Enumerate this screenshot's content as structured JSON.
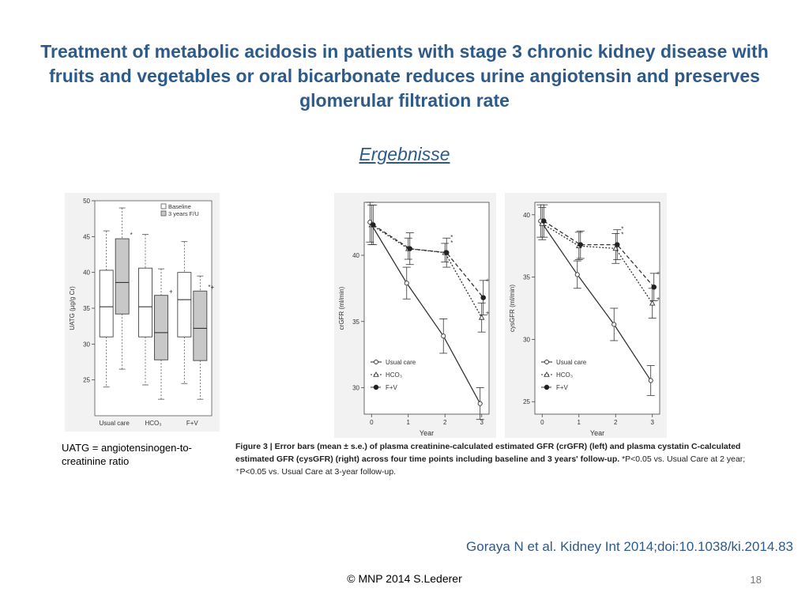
{
  "slide": {
    "title": "Treatment of metabolic acidosis in patients with stage 3 chronic kidney disease with fruits and vegetables or oral bicarbonate reduces urine angiotensin and preserves glomerular filtration rate",
    "subtitle": "Ergebnisse",
    "uatg_note": "UATG = angiotensinogen-to-creatinine ratio",
    "caption_bold": "Figure 3 | Error bars (mean ± s.e.) of plasma creatinine-calculated estimated GFR (crGFR) (left) and plasma cystatin C-calculated estimated GFR (cysGFR) (right) across four time points including baseline and 3 years' follow-up.",
    "caption_rest": " *P<0.05 vs. Usual Care at 2 year; ⁺P<0.05 vs. Usual Care at 3-year follow-up.",
    "citation": "Goraya N et al. Kidney Int 2014;doi:10.1038/ki.2014.83",
    "footer": "© MNP 2014 S.Lederer",
    "page_number": "18"
  },
  "chart_data": [
    {
      "type": "boxplot",
      "ylabel": "UATG (µg/g Cr)",
      "ylim": [
        20,
        50
      ],
      "yticks": [
        25,
        30,
        35,
        40,
        45,
        50
      ],
      "categories": [
        "Usual care",
        "HCO₃",
        "F+V"
      ],
      "legend": [
        "Baseline",
        "3 years F/U"
      ],
      "legend_position": "top-right",
      "series": [
        {
          "name": "Baseline",
          "color": "#ffffff",
          "boxes": [
            {
              "min": 24,
              "q1": 31,
              "median": 35.2,
              "q3": 40.3,
              "max": 45.8
            },
            {
              "min": 24.3,
              "q1": 31,
              "median": 35.2,
              "q3": 40.6,
              "max": 45.3
            },
            {
              "min": 24.5,
              "q1": 31,
              "median": 36.2,
              "q3": 40,
              "max": 44.3
            }
          ]
        },
        {
          "name": "3 years F/U",
          "color": "#c8c8c8",
          "boxes": [
            {
              "min": 26.5,
              "q1": 34.2,
              "median": 38.6,
              "q3": 44.7,
              "max": 49
            },
            {
              "min": 22.3,
              "q1": 27.8,
              "median": 31.6,
              "q3": 36.8,
              "max": 40.5
            },
            {
              "min": 22.3,
              "q1": 27.7,
              "median": 32.2,
              "q3": 37.4,
              "max": 39.5
            }
          ]
        }
      ],
      "annotations": [
        {
          "category": "Usual care",
          "series": "3 years F/U",
          "mark": "*"
        },
        {
          "category": "HCO₃",
          "series": "3 years F/U",
          "mark": "+"
        },
        {
          "category": "F+V",
          "series": "3 years F/U",
          "mark": "*+"
        }
      ]
    },
    {
      "type": "line",
      "ylabel": "crGFR (ml/min)",
      "xlabel": "Year",
      "x": [
        0,
        1,
        2,
        3
      ],
      "ylim": [
        28,
        44
      ],
      "yticks": [
        30,
        35,
        40
      ],
      "legend_position": "bottom-left",
      "series": [
        {
          "name": "Usual care",
          "marker": "open-circle",
          "line": "solid",
          "values": [
            42.5,
            37.9,
            33.9,
            28.8
          ],
          "errors": [
            1.5,
            1.2,
            1.3,
            1.2
          ]
        },
        {
          "name": "HCO₃",
          "marker": "open-triangle",
          "line": "dotted",
          "values": [
            42.3,
            40.5,
            40.2,
            35.3
          ],
          "errors": [
            1.5,
            0.8,
            0.7,
            1.1
          ]
        },
        {
          "name": "F+V",
          "marker": "filled-circle",
          "line": "dashed",
          "values": [
            42.3,
            40.5,
            40.2,
            36.8
          ],
          "errors": [
            1.5,
            1.2,
            1.1,
            1.3
          ]
        }
      ]
    },
    {
      "type": "line",
      "ylabel": "cysGFR (ml/min)",
      "xlabel": "Year",
      "x": [
        0,
        1,
        2,
        3
      ],
      "ylim": [
        24,
        41
      ],
      "yticks": [
        25,
        30,
        35,
        40
      ],
      "legend_position": "bottom-left",
      "series": [
        {
          "name": "Usual care",
          "marker": "open-circle",
          "line": "solid",
          "values": [
            39.5,
            35.2,
            31.2,
            26.7
          ],
          "errors": [
            1.3,
            1.1,
            1.3,
            1.2
          ]
        },
        {
          "name": "HCO₃",
          "marker": "open-triangle",
          "line": "dotted",
          "values": [
            39.3,
            37.5,
            37.3,
            32.9
          ],
          "errors": [
            1.3,
            1.1,
            1.2,
            1.2
          ]
        },
        {
          "name": "F+V",
          "marker": "filled-circle",
          "line": "dashed",
          "values": [
            39.5,
            37.6,
            37.6,
            34.2
          ],
          "errors": [
            1.3,
            1.1,
            1.2,
            1.1
          ]
        }
      ]
    }
  ]
}
